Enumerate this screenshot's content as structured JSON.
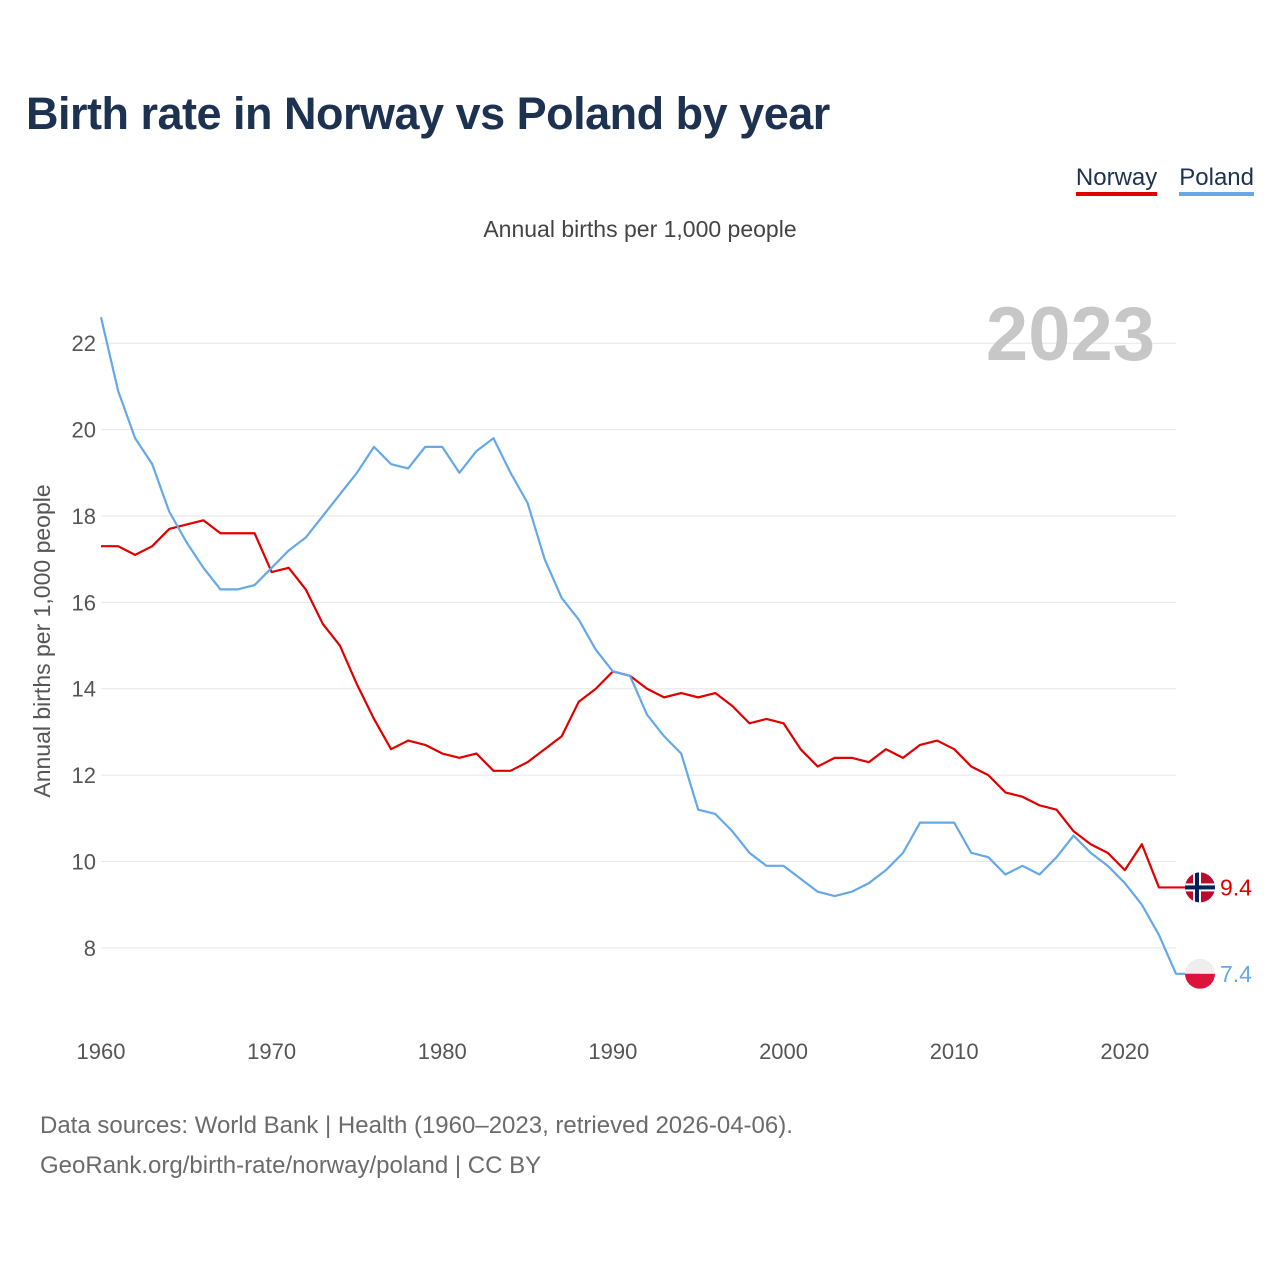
{
  "title": "Birth rate in Norway vs Poland by year",
  "subtitle": "Annual births per 1,000 people",
  "legend": {
    "norway": "Norway",
    "poland": "Poland"
  },
  "colors": {
    "norway": "#e00000",
    "poland": "#64a8e8",
    "title": "#1d3150",
    "grid": "#e6e6e6",
    "watermark": "#c7c7c7"
  },
  "footer": {
    "line1": "Data sources: World Bank | Health (1960–2023, retrieved 2026-04-06).",
    "line2": "GeoRank.org/birth-rate/norway/poland | CC BY"
  },
  "chart_data": {
    "type": "line",
    "title": "Birth rate in Norway vs Poland by year",
    "ylabel": "Annual births per 1,000 people",
    "xlabel": "",
    "year_label": "2023",
    "xlim": [
      1960,
      2023
    ],
    "ylim": [
      6.4,
      23.0
    ],
    "x_ticks": [
      "1960",
      "1970",
      "1980",
      "1990",
      "2000",
      "2010",
      "2020"
    ],
    "y_ticks": [
      "8",
      "10",
      "12",
      "14",
      "16",
      "18",
      "20",
      "22"
    ],
    "x": [
      1960,
      1961,
      1962,
      1963,
      1964,
      1965,
      1966,
      1967,
      1968,
      1969,
      1970,
      1971,
      1972,
      1973,
      1974,
      1975,
      1976,
      1977,
      1978,
      1979,
      1980,
      1981,
      1982,
      1983,
      1984,
      1985,
      1986,
      1987,
      1988,
      1989,
      1990,
      1991,
      1992,
      1993,
      1994,
      1995,
      1996,
      1997,
      1998,
      1999,
      2000,
      2001,
      2002,
      2003,
      2004,
      2005,
      2006,
      2007,
      2008,
      2009,
      2010,
      2011,
      2012,
      2013,
      2014,
      2015,
      2016,
      2017,
      2018,
      2019,
      2020,
      2021,
      2022,
      2023
    ],
    "series": [
      {
        "name": "Norway",
        "end_label": "9.4",
        "values": [
          17.3,
          17.3,
          17.1,
          17.3,
          17.7,
          17.8,
          17.9,
          17.6,
          17.6,
          17.6,
          16.7,
          16.8,
          16.3,
          15.5,
          15.0,
          14.1,
          13.3,
          12.6,
          12.8,
          12.7,
          12.5,
          12.4,
          12.5,
          12.1,
          12.1,
          12.3,
          12.6,
          12.9,
          13.7,
          14.0,
          14.4,
          14.3,
          14.0,
          13.8,
          13.9,
          13.8,
          13.9,
          13.6,
          13.2,
          13.3,
          13.2,
          12.6,
          12.2,
          12.4,
          12.4,
          12.3,
          12.6,
          12.4,
          12.7,
          12.8,
          12.6,
          12.2,
          12.0,
          11.6,
          11.5,
          11.3,
          11.2,
          10.7,
          10.4,
          10.2,
          9.8,
          10.4,
          9.4,
          9.4
        ]
      },
      {
        "name": "Poland",
        "end_label": "7.4",
        "values": [
          22.6,
          20.9,
          19.8,
          19.2,
          18.1,
          17.4,
          16.8,
          16.3,
          16.3,
          16.4,
          16.8,
          17.2,
          17.5,
          18.0,
          18.5,
          19.0,
          19.6,
          19.2,
          19.1,
          19.6,
          19.6,
          19.0,
          19.5,
          19.8,
          19.0,
          18.3,
          17.0,
          16.1,
          15.6,
          14.9,
          14.4,
          14.3,
          13.4,
          12.9,
          12.5,
          11.2,
          11.1,
          10.7,
          10.2,
          9.9,
          9.9,
          9.6,
          9.3,
          9.2,
          9.3,
          9.5,
          9.8,
          10.2,
          10.9,
          10.9,
          10.9,
          10.2,
          10.1,
          9.7,
          9.9,
          9.7,
          10.1,
          10.6,
          10.2,
          9.9,
          9.5,
          9.0,
          8.3,
          7.4
        ]
      }
    ]
  }
}
